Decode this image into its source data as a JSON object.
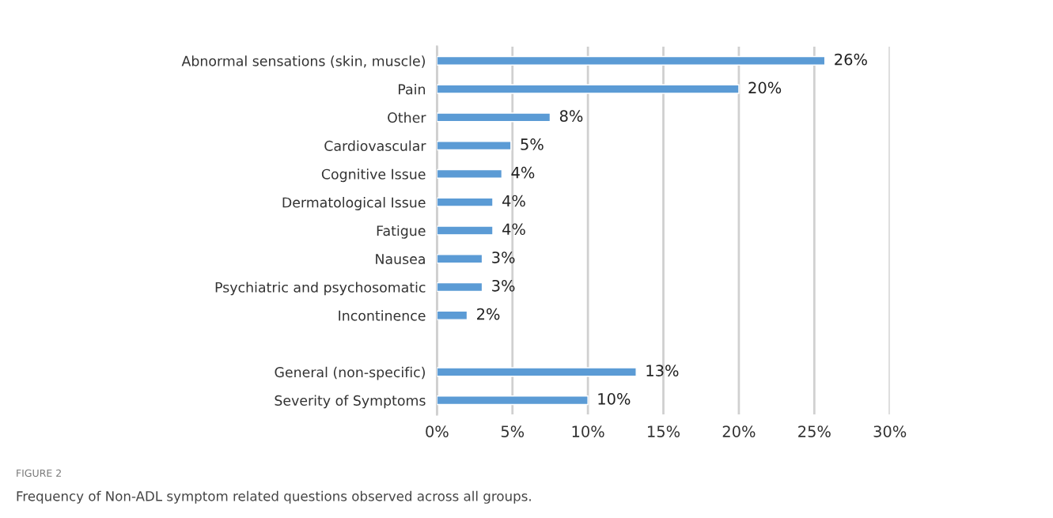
{
  "chart_data": {
    "type": "bar",
    "orientation": "horizontal",
    "categories": [
      "Abnormal sensations (skin, muscle)",
      "Pain",
      "Other",
      "Cardiovascular",
      "Cognitive Issue",
      "Dermatological Issue",
      "Fatigue",
      "Nausea",
      "Psychiatric and psychosomatic",
      "Incontinence",
      null,
      "General (non-specific)",
      "Severity of Symptoms"
    ],
    "values": [
      25.7,
      20.0,
      7.5,
      4.9,
      4.3,
      3.7,
      3.7,
      3.0,
      3.0,
      2.0,
      null,
      13.2,
      10.0
    ],
    "value_labels": [
      "26%",
      "20%",
      "8%",
      "5%",
      "4%",
      "4%",
      "4%",
      "3%",
      "3%",
      "2%",
      null,
      "13%",
      "10%"
    ],
    "color": "#5b9bd5",
    "xlim": [
      0,
      30
    ],
    "xticks": [
      {
        "value": 0,
        "label": "0%"
      },
      {
        "value": 5,
        "label": "5%"
      },
      {
        "value": 10,
        "label": "10%"
      },
      {
        "value": 15,
        "label": "15%"
      },
      {
        "value": 20,
        "label": "20%"
      },
      {
        "value": 25,
        "label": "25%"
      },
      {
        "value": 30,
        "label": "30%"
      }
    ],
    "grid": "x",
    "annotations": [
      "FIGURE 2",
      "Frequency of Non-ADL symptom related questions observed across all groups."
    ]
  }
}
